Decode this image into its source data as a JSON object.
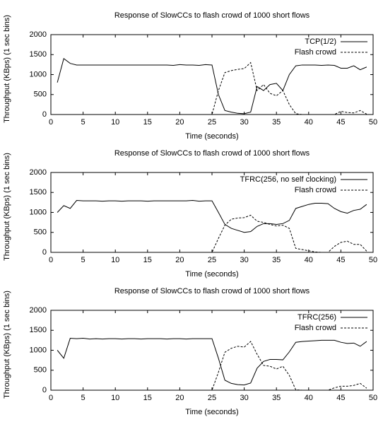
{
  "chart_data": [
    {
      "type": "line",
      "title": "Response of SlowCCs to flash crowd of 1000 short flows",
      "x_label": "Time (seconds)",
      "y_label": "Throughput (KBps) (1 sec bins)",
      "xlim": [
        0,
        50
      ],
      "xticks": [
        0,
        5,
        10,
        15,
        20,
        25,
        30,
        35,
        40,
        45,
        50
      ],
      "ylim": [
        0,
        2000
      ],
      "yticks": [
        0,
        500,
        1000,
        1500,
        2000
      ],
      "legend": "top-right",
      "x": [
        1,
        2,
        3,
        4,
        5,
        6,
        7,
        8,
        9,
        10,
        11,
        12,
        13,
        14,
        15,
        16,
        17,
        18,
        19,
        20,
        21,
        22,
        23,
        24,
        25,
        26,
        27,
        28,
        29,
        30,
        31,
        32,
        33,
        34,
        35,
        36,
        37,
        38,
        39,
        40,
        41,
        42,
        43,
        44,
        45,
        46,
        47,
        48,
        49
      ],
      "series": [
        {
          "name": "TCP(1/2)",
          "color": "#000000",
          "line_style": "solid",
          "values": [
            800,
            1400,
            1280,
            1240,
            1240,
            1240,
            1240,
            1240,
            1240,
            1240,
            1240,
            1240,
            1240,
            1240,
            1240,
            1240,
            1240,
            1240,
            1230,
            1250,
            1240,
            1240,
            1230,
            1250,
            1240,
            500,
            100,
            60,
            30,
            20,
            60,
            700,
            600,
            750,
            780,
            600,
            1000,
            1220,
            1240,
            1240,
            1240,
            1230,
            1240,
            1230,
            1160,
            1160,
            1220,
            1120,
            1190
          ]
        },
        {
          "name": "Flash crowd",
          "color": "#000000",
          "line_style": "dashed",
          "values": [
            0,
            0,
            0,
            0,
            0,
            0,
            0,
            0,
            0,
            0,
            0,
            0,
            0,
            0,
            0,
            0,
            0,
            0,
            0,
            0,
            0,
            0,
            0,
            0,
            0,
            600,
            1050,
            1100,
            1130,
            1150,
            1300,
            600,
            750,
            530,
            470,
            600,
            250,
            20,
            0,
            0,
            0,
            0,
            0,
            0,
            80,
            50,
            40,
            100,
            10
          ]
        }
      ]
    },
    {
      "type": "line",
      "title": "Response of SlowCCs to flash crowd of 1000 short flows",
      "x_label": "Time (seconds)",
      "y_label": "Throughput (KBps) (1 sec bins)",
      "xlim": [
        0,
        50
      ],
      "xticks": [
        0,
        5,
        10,
        15,
        20,
        25,
        30,
        35,
        40,
        45,
        50
      ],
      "ylim": [
        0,
        2000
      ],
      "yticks": [
        0,
        500,
        1000,
        1500,
        2000
      ],
      "legend": "top-right",
      "x": [
        1,
        2,
        3,
        4,
        5,
        6,
        7,
        8,
        9,
        10,
        11,
        12,
        13,
        14,
        15,
        16,
        17,
        18,
        19,
        20,
        21,
        22,
        23,
        24,
        25,
        26,
        27,
        28,
        29,
        30,
        31,
        32,
        33,
        34,
        35,
        36,
        37,
        38,
        39,
        40,
        41,
        42,
        43,
        44,
        45,
        46,
        47,
        48,
        49
      ],
      "series": [
        {
          "name": "TFRC(256, no self clocking)",
          "color": "#000000",
          "line_style": "solid",
          "values": [
            1000,
            1170,
            1100,
            1300,
            1290,
            1290,
            1290,
            1280,
            1290,
            1290,
            1280,
            1290,
            1290,
            1290,
            1280,
            1290,
            1290,
            1290,
            1290,
            1290,
            1290,
            1300,
            1280,
            1290,
            1290,
            1000,
            700,
            600,
            550,
            500,
            520,
            650,
            720,
            720,
            700,
            720,
            800,
            1100,
            1150,
            1200,
            1230,
            1230,
            1220,
            1100,
            1020,
            980,
            1050,
            1080,
            1200
          ]
        },
        {
          "name": "Flash crowd",
          "color": "#000000",
          "line_style": "dashed",
          "values": [
            0,
            0,
            0,
            0,
            0,
            0,
            0,
            0,
            0,
            0,
            0,
            0,
            0,
            0,
            0,
            0,
            0,
            0,
            0,
            0,
            0,
            0,
            0,
            0,
            0,
            350,
            680,
            830,
            860,
            870,
            930,
            780,
            750,
            700,
            660,
            680,
            600,
            100,
            70,
            40,
            10,
            0,
            0,
            150,
            250,
            280,
            200,
            200,
            30
          ]
        }
      ]
    },
    {
      "type": "line",
      "title": "Response of SlowCCs to flash crowd of 1000 short flows",
      "x_label": "Time (seconds)",
      "y_label": "Throughput (KBps) (1 sec bins)",
      "xlim": [
        0,
        50
      ],
      "xticks": [
        0,
        5,
        10,
        15,
        20,
        25,
        30,
        35,
        40,
        45,
        50
      ],
      "ylim": [
        0,
        2000
      ],
      "yticks": [
        0,
        500,
        1000,
        1500,
        2000
      ],
      "legend": "top-right",
      "x": [
        1,
        2,
        3,
        4,
        5,
        6,
        7,
        8,
        9,
        10,
        11,
        12,
        13,
        14,
        15,
        16,
        17,
        18,
        19,
        20,
        21,
        22,
        23,
        24,
        25,
        26,
        27,
        28,
        29,
        30,
        31,
        32,
        33,
        34,
        35,
        36,
        37,
        38,
        39,
        40,
        41,
        42,
        43,
        44,
        45,
        46,
        47,
        48,
        49
      ],
      "series": [
        {
          "name": "TFRC(256)",
          "color": "#000000",
          "line_style": "solid",
          "values": [
            1000,
            800,
            1300,
            1290,
            1300,
            1280,
            1290,
            1280,
            1290,
            1290,
            1280,
            1290,
            1290,
            1280,
            1290,
            1290,
            1290,
            1280,
            1290,
            1290,
            1280,
            1290,
            1290,
            1290,
            1290,
            800,
            250,
            170,
            140,
            130,
            180,
            550,
            720,
            770,
            770,
            760,
            960,
            1200,
            1220,
            1230,
            1240,
            1250,
            1250,
            1250,
            1200,
            1170,
            1180,
            1100,
            1220
          ]
        },
        {
          "name": "Flash crowd",
          "color": "#000000",
          "line_style": "dashed",
          "values": [
            0,
            0,
            0,
            0,
            0,
            0,
            0,
            0,
            0,
            0,
            0,
            0,
            0,
            0,
            0,
            0,
            0,
            0,
            0,
            0,
            0,
            0,
            0,
            0,
            0,
            450,
            950,
            1050,
            1100,
            1080,
            1220,
            900,
            620,
            600,
            530,
            600,
            370,
            10,
            0,
            0,
            0,
            0,
            0,
            60,
            100,
            100,
            120,
            170,
            50
          ]
        }
      ]
    }
  ]
}
